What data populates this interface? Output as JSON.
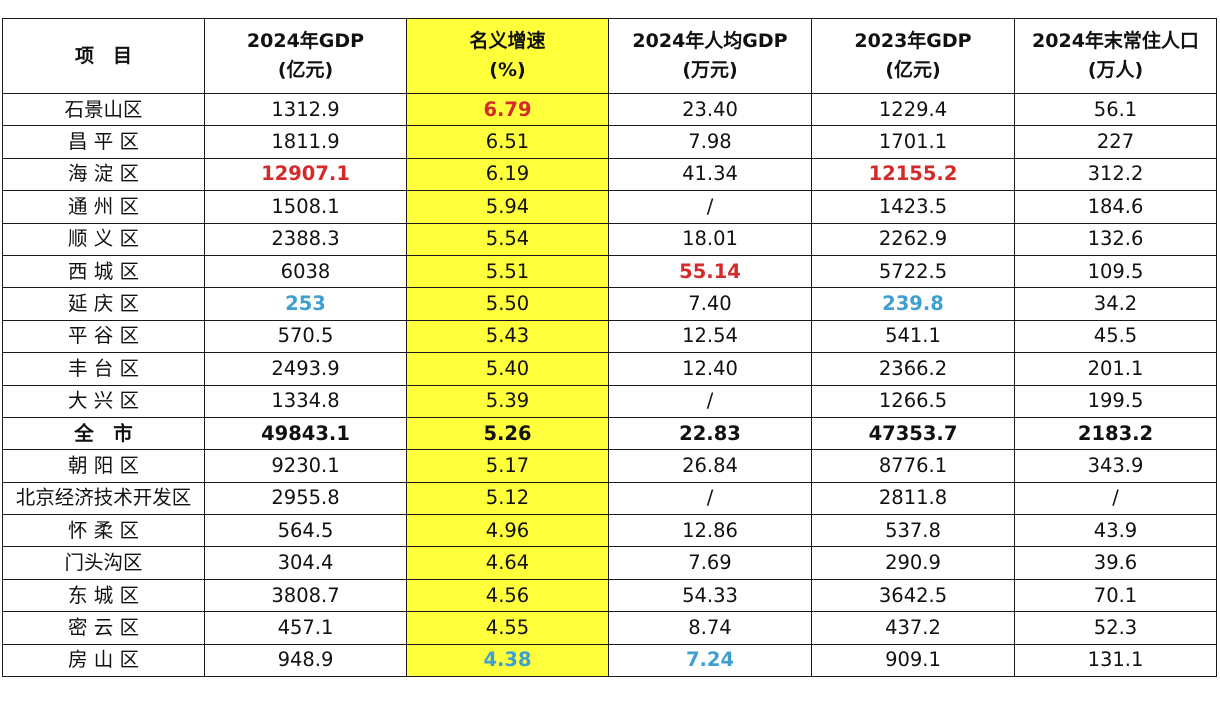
{
  "headers": [
    {
      "l1": "项　目",
      "l2": ""
    },
    {
      "l1": "2024年GDP",
      "l2": "(亿元)"
    },
    {
      "l1": "名义增速",
      "l2": "(%)"
    },
    {
      "l1": "2024年人均GDP",
      "l2": "(万元)"
    },
    {
      "l1": "2023年GDP",
      "l2": "(亿元)"
    },
    {
      "l1": "2024年末常住人口",
      "l2": "(万人)"
    }
  ],
  "rows": [
    {
      "name": "石景山区",
      "gdp2024": "1312.9",
      "growth": "6.79",
      "per_capita": "23.40",
      "gdp2023": "1229.4",
      "population": "56.1"
    },
    {
      "name": "昌 平 区",
      "gdp2024": "1811.9",
      "growth": "6.51",
      "per_capita": "7.98",
      "gdp2023": "1701.1",
      "population": "227"
    },
    {
      "name": "海 淀 区",
      "gdp2024": "12907.1",
      "growth": "6.19",
      "per_capita": "41.34",
      "gdp2023": "12155.2",
      "population": "312.2"
    },
    {
      "name": "通 州 区",
      "gdp2024": "1508.1",
      "growth": "5.94",
      "per_capita": "/",
      "gdp2023": "1423.5",
      "population": "184.6"
    },
    {
      "name": "顺 义 区",
      "gdp2024": "2388.3",
      "growth": "5.54",
      "per_capita": "18.01",
      "gdp2023": "2262.9",
      "population": "132.6"
    },
    {
      "name": "西 城 区",
      "gdp2024": "6038",
      "growth": "5.51",
      "per_capita": "55.14",
      "gdp2023": "5722.5",
      "population": "109.5"
    },
    {
      "name": "延 庆 区",
      "gdp2024": "253",
      "growth": "5.50",
      "per_capita": "7.40",
      "gdp2023": "239.8",
      "population": "34.2"
    },
    {
      "name": "平 谷 区",
      "gdp2024": "570.5",
      "growth": "5.43",
      "per_capita": "12.54",
      "gdp2023": "541.1",
      "population": "45.5"
    },
    {
      "name": "丰 台 区",
      "gdp2024": "2493.9",
      "growth": "5.40",
      "per_capita": "12.40",
      "gdp2023": "2366.2",
      "population": "201.1"
    },
    {
      "name": "大 兴 区",
      "gdp2024": "1334.8",
      "growth": "5.39",
      "per_capita": "/",
      "gdp2023": "1266.5",
      "population": "199.5"
    },
    {
      "name": "全　市",
      "gdp2024": "49843.1",
      "growth": "5.26",
      "per_capita": "22.83",
      "gdp2023": "47353.7",
      "population": "2183.2"
    },
    {
      "name": "朝 阳 区",
      "gdp2024": "9230.1",
      "growth": "5.17",
      "per_capita": "26.84",
      "gdp2023": "8776.1",
      "population": "343.9"
    },
    {
      "name": "北京经济技术开发区",
      "gdp2024": "2955.8",
      "growth": "5.12",
      "per_capita": "/",
      "gdp2023": "2811.8",
      "population": "/"
    },
    {
      "name": "怀 柔 区",
      "gdp2024": "564.5",
      "growth": "4.96",
      "per_capita": "12.86",
      "gdp2023": "537.8",
      "population": "43.9"
    },
    {
      "name": "门头沟区",
      "gdp2024": "304.4",
      "growth": "4.64",
      "per_capita": "7.69",
      "gdp2023": "290.9",
      "population": "39.6"
    },
    {
      "name": "东 城 区",
      "gdp2024": "3808.7",
      "growth": "4.56",
      "per_capita": "54.33",
      "gdp2023": "3642.5",
      "population": "70.1"
    },
    {
      "name": "密 云 区",
      "gdp2024": "457.1",
      "growth": "4.55",
      "per_capita": "8.74",
      "gdp2023": "437.2",
      "population": "52.3"
    },
    {
      "name": "房 山 区",
      "gdp2024": "948.9",
      "growth": "4.38",
      "per_capita": "7.24",
      "gdp2023": "909.1",
      "population": "131.1"
    }
  ],
  "colors": {
    "highlight_column": "#ffff3c",
    "max_value": "#d42a2a",
    "min_value": "#3f9fcf",
    "border": "#1a1a1a"
  }
}
